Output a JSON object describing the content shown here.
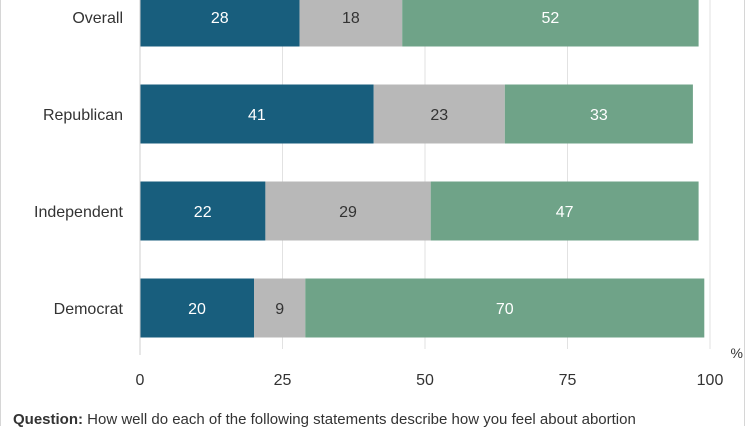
{
  "chart_data": {
    "type": "bar",
    "orientation": "horizontal",
    "stacked": true,
    "categories": [
      "Overall",
      "Republican",
      "Independent",
      "Democrat"
    ],
    "series": [
      {
        "values": [
          28,
          41,
          22,
          20
        ],
        "color": "#185e7d"
      },
      {
        "values": [
          18,
          23,
          29,
          9
        ],
        "color": "#b8b8b8"
      },
      {
        "values": [
          52,
          33,
          47,
          70
        ],
        "color": "#6fa388"
      }
    ],
    "xlim": [
      0,
      100
    ],
    "xticks": [
      0,
      25,
      50,
      75,
      100
    ],
    "xunit": "%",
    "grid": true
  },
  "footnote": {
    "label": "Question:",
    "text": "How well do each of the following statements describe how you feel about abortion"
  }
}
